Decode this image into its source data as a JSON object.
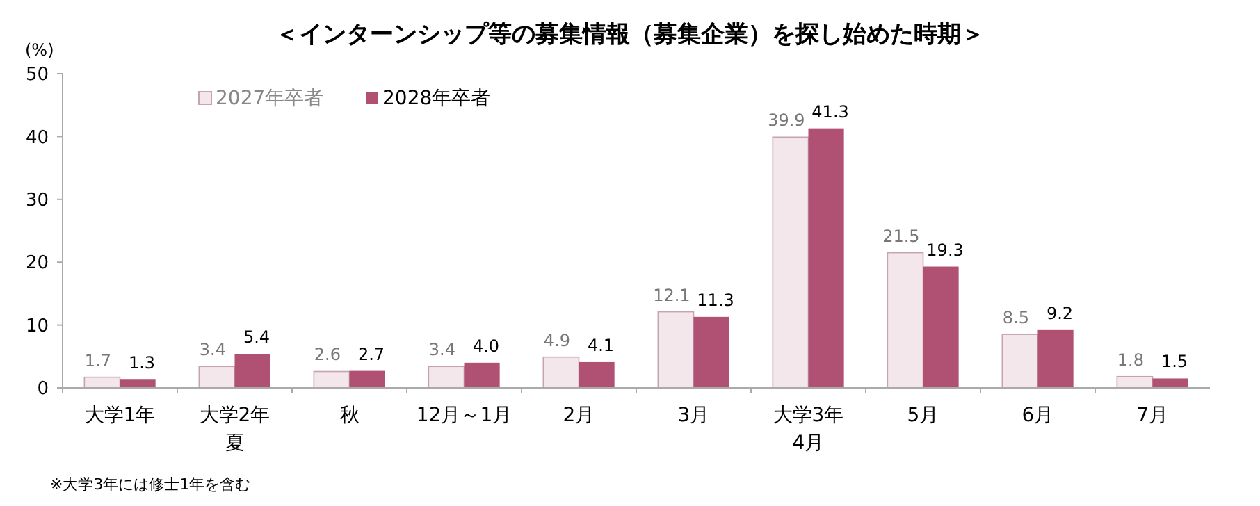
{
  "chart_data": {
    "type": "bar",
    "title": "＜インターンシップ等の募集情報（募集企業）を探し始めた時期＞",
    "ylabel": "(%)",
    "categories": [
      "大学1年",
      "大学2年夏",
      "秋",
      "12月～1月",
      "2月",
      "3月",
      "大学3年4月",
      "5月",
      "6月",
      "7月"
    ],
    "series": [
      {
        "name": "2027年卒者",
        "color": "#f3e7eb",
        "values": [
          1.7,
          3.4,
          2.6,
          3.4,
          4.9,
          12.1,
          39.9,
          21.5,
          8.5,
          1.8
        ],
        "value_labels": [
          "1.7",
          "3.4",
          "2.6",
          "3.4",
          "4.9",
          "12.1",
          "39.9",
          "21.5",
          "8.5",
          "1.8"
        ]
      },
      {
        "name": "2028年卒者",
        "color": "#b05072",
        "values": [
          1.3,
          5.4,
          2.7,
          4.0,
          4.1,
          11.3,
          41.3,
          19.3,
          9.2,
          1.5
        ],
        "value_labels": [
          "1.3",
          "5.4",
          "2.7",
          "4.0",
          "4.1",
          "11.3",
          "41.3",
          "19.3",
          "9.2",
          "1.5"
        ]
      }
    ],
    "ylim": [
      0,
      50
    ],
    "yticks": [
      0,
      10,
      20,
      30,
      40,
      50
    ],
    "grid": false,
    "legend": "top left",
    "annotations": [
      "※大学3年には修士1年を含む"
    ]
  }
}
